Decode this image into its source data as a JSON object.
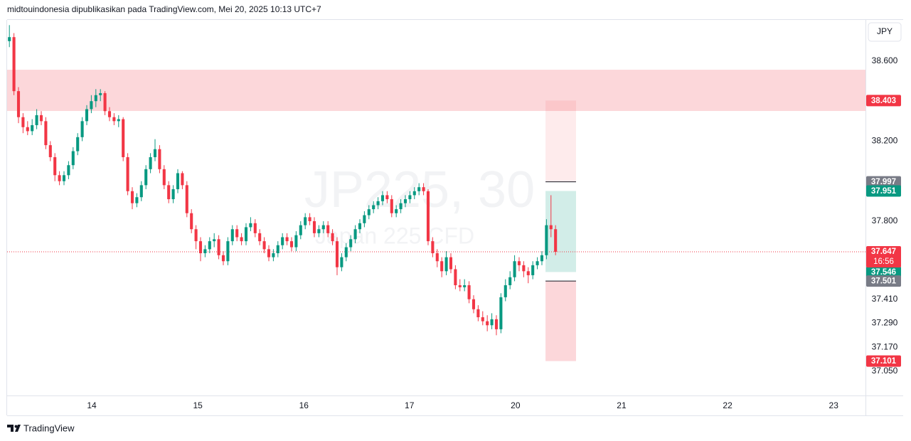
{
  "header": "midtouindonesia dipublikasikan pada TradingView.com, Mei 20, 2025 10:13 UTC+7",
  "currency": "JPY",
  "brand": "TradingView",
  "watermark": {
    "symbol": "JP225, 30",
    "description": "Japan 225 CFD"
  },
  "chart_data": {
    "type": "candlestick",
    "up_color": "#089981",
    "down_color": "#f23645",
    "xlim": [
      -0.5,
      188.1
    ],
    "xticks": [
      {
        "value": 18.1,
        "label": "14"
      },
      {
        "value": 41.4,
        "label": "15"
      },
      {
        "value": 64.7,
        "label": "16"
      },
      {
        "value": 87.9,
        "label": "17"
      },
      {
        "value": 111.2,
        "label": "20"
      },
      {
        "value": 134.5,
        "label": "21"
      },
      {
        "value": 157.8,
        "label": "22"
      },
      {
        "value": 181.1,
        "label": "23"
      }
    ],
    "ylim": [
      36.929,
      38.806
    ],
    "yticks": [
      {
        "value": 38.6,
        "label": "38.600"
      },
      {
        "value": 38.2,
        "label": "38.200"
      },
      {
        "value": 37.8,
        "label": "37.800"
      },
      {
        "value": 37.41,
        "label": "37.410"
      },
      {
        "value": 37.29,
        "label": "37.290"
      },
      {
        "value": 37.17,
        "label": "37.170"
      },
      {
        "value": 37.05,
        "label": "37.050"
      }
    ],
    "candles": [
      [
        38.7,
        38.78,
        38.67,
        38.72
      ],
      [
        38.72,
        38.74,
        38.43,
        38.45
      ],
      [
        38.45,
        38.47,
        38.29,
        38.32
      ],
      [
        38.32,
        38.34,
        38.24,
        38.27
      ],
      [
        38.27,
        38.3,
        38.23,
        38.25
      ],
      [
        38.25,
        38.31,
        38.23,
        38.28
      ],
      [
        38.28,
        38.36,
        38.26,
        38.33
      ],
      [
        38.33,
        38.35,
        38.28,
        38.3
      ],
      [
        38.3,
        38.32,
        38.16,
        38.18
      ],
      [
        38.18,
        38.2,
        38.1,
        38.12
      ],
      [
        38.12,
        38.14,
        38.0,
        38.03
      ],
      [
        38.03,
        38.05,
        37.98,
        38.0
      ],
      [
        38.0,
        38.05,
        37.98,
        38.03
      ],
      [
        38.03,
        38.1,
        38.01,
        38.08
      ],
      [
        38.08,
        38.17,
        38.06,
        38.15
      ],
      [
        38.15,
        38.24,
        38.13,
        38.22
      ],
      [
        38.22,
        38.32,
        38.2,
        38.3
      ],
      [
        38.3,
        38.38,
        38.28,
        38.36
      ],
      [
        38.36,
        38.43,
        38.34,
        38.4
      ],
      [
        38.4,
        38.46,
        38.37,
        38.43
      ],
      [
        38.43,
        38.46,
        38.4,
        38.44
      ],
      [
        38.44,
        38.45,
        38.33,
        38.35
      ],
      [
        38.35,
        38.37,
        38.3,
        38.32
      ],
      [
        38.32,
        38.34,
        38.28,
        38.3
      ],
      [
        38.3,
        38.33,
        38.27,
        38.31
      ],
      [
        38.31,
        38.32,
        38.1,
        38.12
      ],
      [
        38.12,
        38.14,
        37.93,
        37.95
      ],
      [
        37.95,
        37.97,
        37.86,
        37.89
      ],
      [
        37.89,
        37.94,
        37.87,
        37.92
      ],
      [
        37.92,
        38.0,
        37.9,
        37.98
      ],
      [
        37.98,
        38.08,
        37.96,
        38.06
      ],
      [
        38.06,
        38.14,
        38.04,
        38.12
      ],
      [
        38.12,
        38.21,
        38.1,
        38.16
      ],
      [
        38.16,
        38.18,
        38.04,
        38.06
      ],
      [
        38.06,
        38.08,
        37.96,
        37.98
      ],
      [
        37.98,
        38.0,
        37.89,
        37.91
      ],
      [
        37.91,
        37.98,
        37.89,
        37.96
      ],
      [
        37.96,
        38.06,
        37.94,
        38.04
      ],
      [
        38.04,
        38.05,
        37.96,
        37.98
      ],
      [
        37.98,
        38.0,
        37.82,
        37.84
      ],
      [
        37.84,
        37.86,
        37.74,
        37.76
      ],
      [
        37.76,
        37.78,
        37.66,
        37.7
      ],
      [
        37.7,
        37.72,
        37.6,
        37.64
      ],
      [
        37.64,
        37.68,
        37.62,
        37.66
      ],
      [
        37.66,
        37.72,
        37.64,
        37.7
      ],
      [
        37.7,
        37.74,
        37.67,
        37.71
      ],
      [
        37.71,
        37.73,
        37.61,
        37.63
      ],
      [
        37.63,
        37.65,
        37.58,
        37.6
      ],
      [
        37.6,
        37.72,
        37.58,
        37.7
      ],
      [
        37.7,
        37.78,
        37.68,
        37.76
      ],
      [
        37.76,
        37.78,
        37.7,
        37.72
      ],
      [
        37.72,
        37.74,
        37.68,
        37.7
      ],
      [
        37.7,
        37.79,
        37.68,
        37.77
      ],
      [
        37.77,
        37.82,
        37.75,
        37.79
      ],
      [
        37.79,
        37.81,
        37.72,
        37.74
      ],
      [
        37.74,
        37.76,
        37.68,
        37.7
      ],
      [
        37.7,
        37.72,
        37.64,
        37.66
      ],
      [
        37.66,
        37.68,
        37.6,
        37.62
      ],
      [
        37.62,
        37.66,
        37.6,
        37.64
      ],
      [
        37.64,
        37.7,
        37.62,
        37.68
      ],
      [
        37.68,
        37.74,
        37.66,
        37.72
      ],
      [
        37.72,
        37.74,
        37.68,
        37.7
      ],
      [
        37.7,
        37.72,
        37.65,
        37.67
      ],
      [
        37.67,
        37.75,
        37.65,
        37.73
      ],
      [
        37.73,
        37.8,
        37.71,
        37.78
      ],
      [
        37.78,
        37.84,
        37.76,
        37.82
      ],
      [
        37.82,
        37.84,
        37.78,
        37.8
      ],
      [
        37.8,
        37.82,
        37.72,
        37.74
      ],
      [
        37.74,
        37.78,
        37.72,
        37.76
      ],
      [
        37.76,
        37.8,
        37.74,
        37.78
      ],
      [
        37.78,
        37.8,
        37.72,
        37.74
      ],
      [
        37.74,
        37.76,
        37.68,
        37.7
      ],
      [
        37.7,
        37.72,
        37.53,
        37.57
      ],
      [
        37.57,
        37.64,
        37.55,
        37.62
      ],
      [
        37.62,
        37.69,
        37.6,
        37.67
      ],
      [
        37.67,
        37.73,
        37.65,
        37.71
      ],
      [
        37.71,
        37.78,
        37.69,
        37.76
      ],
      [
        37.76,
        37.81,
        37.74,
        37.79
      ],
      [
        37.79,
        37.85,
        37.77,
        37.83
      ],
      [
        37.83,
        37.88,
        37.81,
        37.86
      ],
      [
        37.86,
        37.9,
        37.84,
        37.88
      ],
      [
        37.88,
        37.92,
        37.86,
        37.9
      ],
      [
        37.9,
        37.95,
        37.88,
        37.93
      ],
      [
        37.93,
        37.95,
        37.89,
        37.91
      ],
      [
        37.91,
        37.93,
        37.82,
        37.84
      ],
      [
        37.84,
        37.88,
        37.82,
        37.86
      ],
      [
        37.86,
        37.91,
        37.84,
        37.89
      ],
      [
        37.89,
        37.93,
        37.87,
        37.91
      ],
      [
        37.91,
        37.95,
        37.89,
        37.93
      ],
      [
        37.93,
        37.97,
        37.91,
        37.95
      ],
      [
        37.95,
        37.99,
        37.93,
        37.97
      ],
      [
        37.97,
        37.99,
        37.93,
        37.95
      ],
      [
        37.95,
        37.96,
        37.68,
        37.7
      ],
      [
        37.7,
        37.72,
        37.62,
        37.64
      ],
      [
        37.64,
        37.66,
        37.57,
        37.6
      ],
      [
        37.6,
        37.62,
        37.52,
        37.55
      ],
      [
        37.55,
        37.65,
        37.53,
        37.62
      ],
      [
        37.62,
        37.64,
        37.54,
        37.56
      ],
      [
        37.56,
        37.58,
        37.46,
        37.48
      ],
      [
        37.48,
        37.51,
        37.45,
        37.47
      ],
      [
        37.47,
        37.51,
        37.45,
        37.48
      ],
      [
        37.48,
        37.5,
        37.39,
        37.41
      ],
      [
        37.41,
        37.43,
        37.34,
        37.36
      ],
      [
        37.36,
        37.38,
        37.3,
        37.32
      ],
      [
        37.32,
        37.35,
        37.28,
        37.3
      ],
      [
        37.3,
        37.33,
        37.25,
        37.28
      ],
      [
        37.28,
        37.34,
        37.26,
        37.31
      ],
      [
        37.31,
        37.33,
        37.23,
        37.26
      ],
      [
        37.26,
        37.44,
        37.24,
        37.42
      ],
      [
        37.42,
        37.51,
        37.4,
        37.48
      ],
      [
        37.48,
        37.55,
        37.46,
        37.52
      ],
      [
        37.52,
        37.63,
        37.5,
        37.6
      ],
      [
        37.6,
        37.62,
        37.55,
        37.58
      ],
      [
        37.58,
        37.6,
        37.52,
        37.55
      ],
      [
        37.55,
        37.57,
        37.49,
        37.53
      ],
      [
        37.53,
        37.6,
        37.51,
        37.58
      ],
      [
        37.58,
        37.62,
        37.56,
        37.6
      ],
      [
        37.6,
        37.65,
        37.58,
        37.63
      ],
      [
        37.63,
        37.81,
        37.61,
        37.78
      ],
      [
        37.78,
        37.93,
        37.72,
        37.76
      ],
      [
        37.76,
        37.78,
        37.63,
        37.647
      ]
    ],
    "zone": {
      "top": 38.557,
      "bottom": 38.351,
      "color": "#f23645"
    },
    "position": {
      "x_start": 117.8,
      "x_end": 124.5,
      "levels": [
        38.403,
        37.997,
        37.951,
        37.546,
        37.501,
        37.101
      ],
      "level_colors": [
        "#f23645",
        "#787b86",
        "#089981",
        "#089981",
        "#787b86",
        "#f23645"
      ]
    },
    "last_price": 37.647,
    "countdown": "16:56"
  }
}
